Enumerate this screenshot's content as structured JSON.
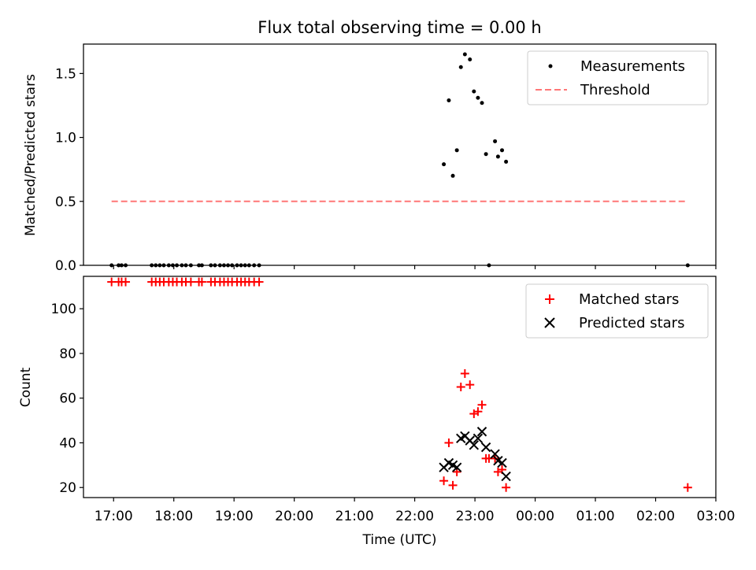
{
  "chart_data": [
    {
      "panel": "top",
      "type": "scatter",
      "title": "Flux total observing time = 0.00 h",
      "xlabel": "",
      "ylabel": "Matched/Predicted stars",
      "xlim": [
        "16:30",
        "03:00"
      ],
      "ylim": [
        0,
        1.73
      ],
      "yticks": [
        "0.0",
        "0.5",
        "1.0",
        "1.5"
      ],
      "grid": false,
      "legend_position": "upper right",
      "series": [
        {
          "name": "Measurements",
          "kind": "dot",
          "color": "#000000",
          "points": [
            [
              "16:58",
              0
            ],
            [
              "17:05",
              0
            ],
            [
              "17:08",
              0
            ],
            [
              "17:12",
              0
            ],
            [
              "17:38",
              0
            ],
            [
              "17:42",
              0
            ],
            [
              "17:46",
              0
            ],
            [
              "17:50",
              0
            ],
            [
              "17:55",
              0
            ],
            [
              "17:59",
              0
            ],
            [
              "18:03",
              0
            ],
            [
              "18:08",
              0
            ],
            [
              "18:12",
              0
            ],
            [
              "18:17",
              0
            ],
            [
              "18:25",
              0
            ],
            [
              "18:28",
              0
            ],
            [
              "18:37",
              0
            ],
            [
              "18:41",
              0
            ],
            [
              "18:46",
              0
            ],
            [
              "18:50",
              0
            ],
            [
              "18:54",
              0
            ],
            [
              "18:58",
              0
            ],
            [
              "19:03",
              0
            ],
            [
              "19:07",
              0
            ],
            [
              "19:11",
              0
            ],
            [
              "19:15",
              0
            ],
            [
              "19:20",
              0
            ],
            [
              "19:25",
              0
            ],
            [
              "22:29",
              0.79
            ],
            [
              "22:34",
              1.29
            ],
            [
              "22:38",
              0.7
            ],
            [
              "22:42",
              0.9
            ],
            [
              "22:46",
              1.55
            ],
            [
              "22:50",
              1.65
            ],
            [
              "22:55",
              1.61
            ],
            [
              "22:59",
              1.36
            ],
            [
              "23:03",
              1.31
            ],
            [
              "23:07",
              1.27
            ],
            [
              "23:11",
              0.87
            ],
            [
              "23:14",
              0
            ],
            [
              "23:20",
              0.97
            ],
            [
              "23:23",
              0.85
            ],
            [
              "23:27",
              0.9
            ],
            [
              "23:31",
              0.81
            ],
            [
              "02:32",
              0
            ]
          ]
        },
        {
          "name": "Threshold",
          "kind": "dashed-line",
          "color": "#ff7777",
          "points": [
            [
              "16:58",
              0.5
            ],
            [
              "02:32",
              0.5
            ]
          ]
        }
      ]
    },
    {
      "panel": "bottom",
      "type": "scatter",
      "title": "",
      "xlabel": "Time (UTC)",
      "ylabel": "Count",
      "xlim": [
        "16:30",
        "03:00"
      ],
      "ylim": [
        15.5,
        114.5
      ],
      "xticks": [
        "17:00",
        "18:00",
        "19:00",
        "20:00",
        "21:00",
        "22:00",
        "23:00",
        "00:00",
        "01:00",
        "02:00",
        "03:00"
      ],
      "yticks": [
        "20",
        "40",
        "60",
        "80",
        "100"
      ],
      "grid": false,
      "legend_position": "upper right",
      "series": [
        {
          "name": "Matched stars",
          "kind": "plus",
          "color": "#ff0000",
          "points": [
            [
              "16:58",
              112
            ],
            [
              "17:05",
              112
            ],
            [
              "17:08",
              112
            ],
            [
              "17:12",
              112
            ],
            [
              "17:38",
              112
            ],
            [
              "17:42",
              112
            ],
            [
              "17:46",
              112
            ],
            [
              "17:50",
              112
            ],
            [
              "17:55",
              112
            ],
            [
              "17:59",
              112
            ],
            [
              "18:03",
              112
            ],
            [
              "18:08",
              112
            ],
            [
              "18:12",
              112
            ],
            [
              "18:17",
              112
            ],
            [
              "18:25",
              112
            ],
            [
              "18:28",
              112
            ],
            [
              "18:37",
              112
            ],
            [
              "18:41",
              112
            ],
            [
              "18:46",
              112
            ],
            [
              "18:50",
              112
            ],
            [
              "18:54",
              112
            ],
            [
              "18:58",
              112
            ],
            [
              "19:03",
              112
            ],
            [
              "19:07",
              112
            ],
            [
              "19:11",
              112
            ],
            [
              "19:15",
              112
            ],
            [
              "19:20",
              112
            ],
            [
              "19:25",
              112
            ],
            [
              "22:29",
              23
            ],
            [
              "22:34",
              40
            ],
            [
              "22:38",
              21
            ],
            [
              "22:42",
              27
            ],
            [
              "22:46",
              65
            ],
            [
              "22:50",
              71
            ],
            [
              "22:55",
              66
            ],
            [
              "22:59",
              53
            ],
            [
              "23:03",
              54
            ],
            [
              "23:07",
              57
            ],
            [
              "23:11",
              33
            ],
            [
              "23:14",
              33
            ],
            [
              "23:20",
              33
            ],
            [
              "23:23",
              27
            ],
            [
              "23:27",
              28
            ],
            [
              "23:31",
              20
            ],
            [
              "02:32",
              20
            ]
          ]
        },
        {
          "name": "Predicted stars",
          "kind": "cross",
          "color": "#000000",
          "points": [
            [
              "22:29",
              29
            ],
            [
              "22:34",
              31
            ],
            [
              "22:38",
              30
            ],
            [
              "22:42",
              29
            ],
            [
              "22:46",
              42
            ],
            [
              "22:50",
              43
            ],
            [
              "22:55",
              41
            ],
            [
              "22:59",
              39
            ],
            [
              "23:03",
              42
            ],
            [
              "23:07",
              45
            ],
            [
              "23:11",
              38
            ],
            [
              "23:20",
              35
            ],
            [
              "23:23",
              32
            ],
            [
              "23:27",
              31
            ],
            [
              "23:31",
              25
            ]
          ]
        }
      ]
    }
  ]
}
